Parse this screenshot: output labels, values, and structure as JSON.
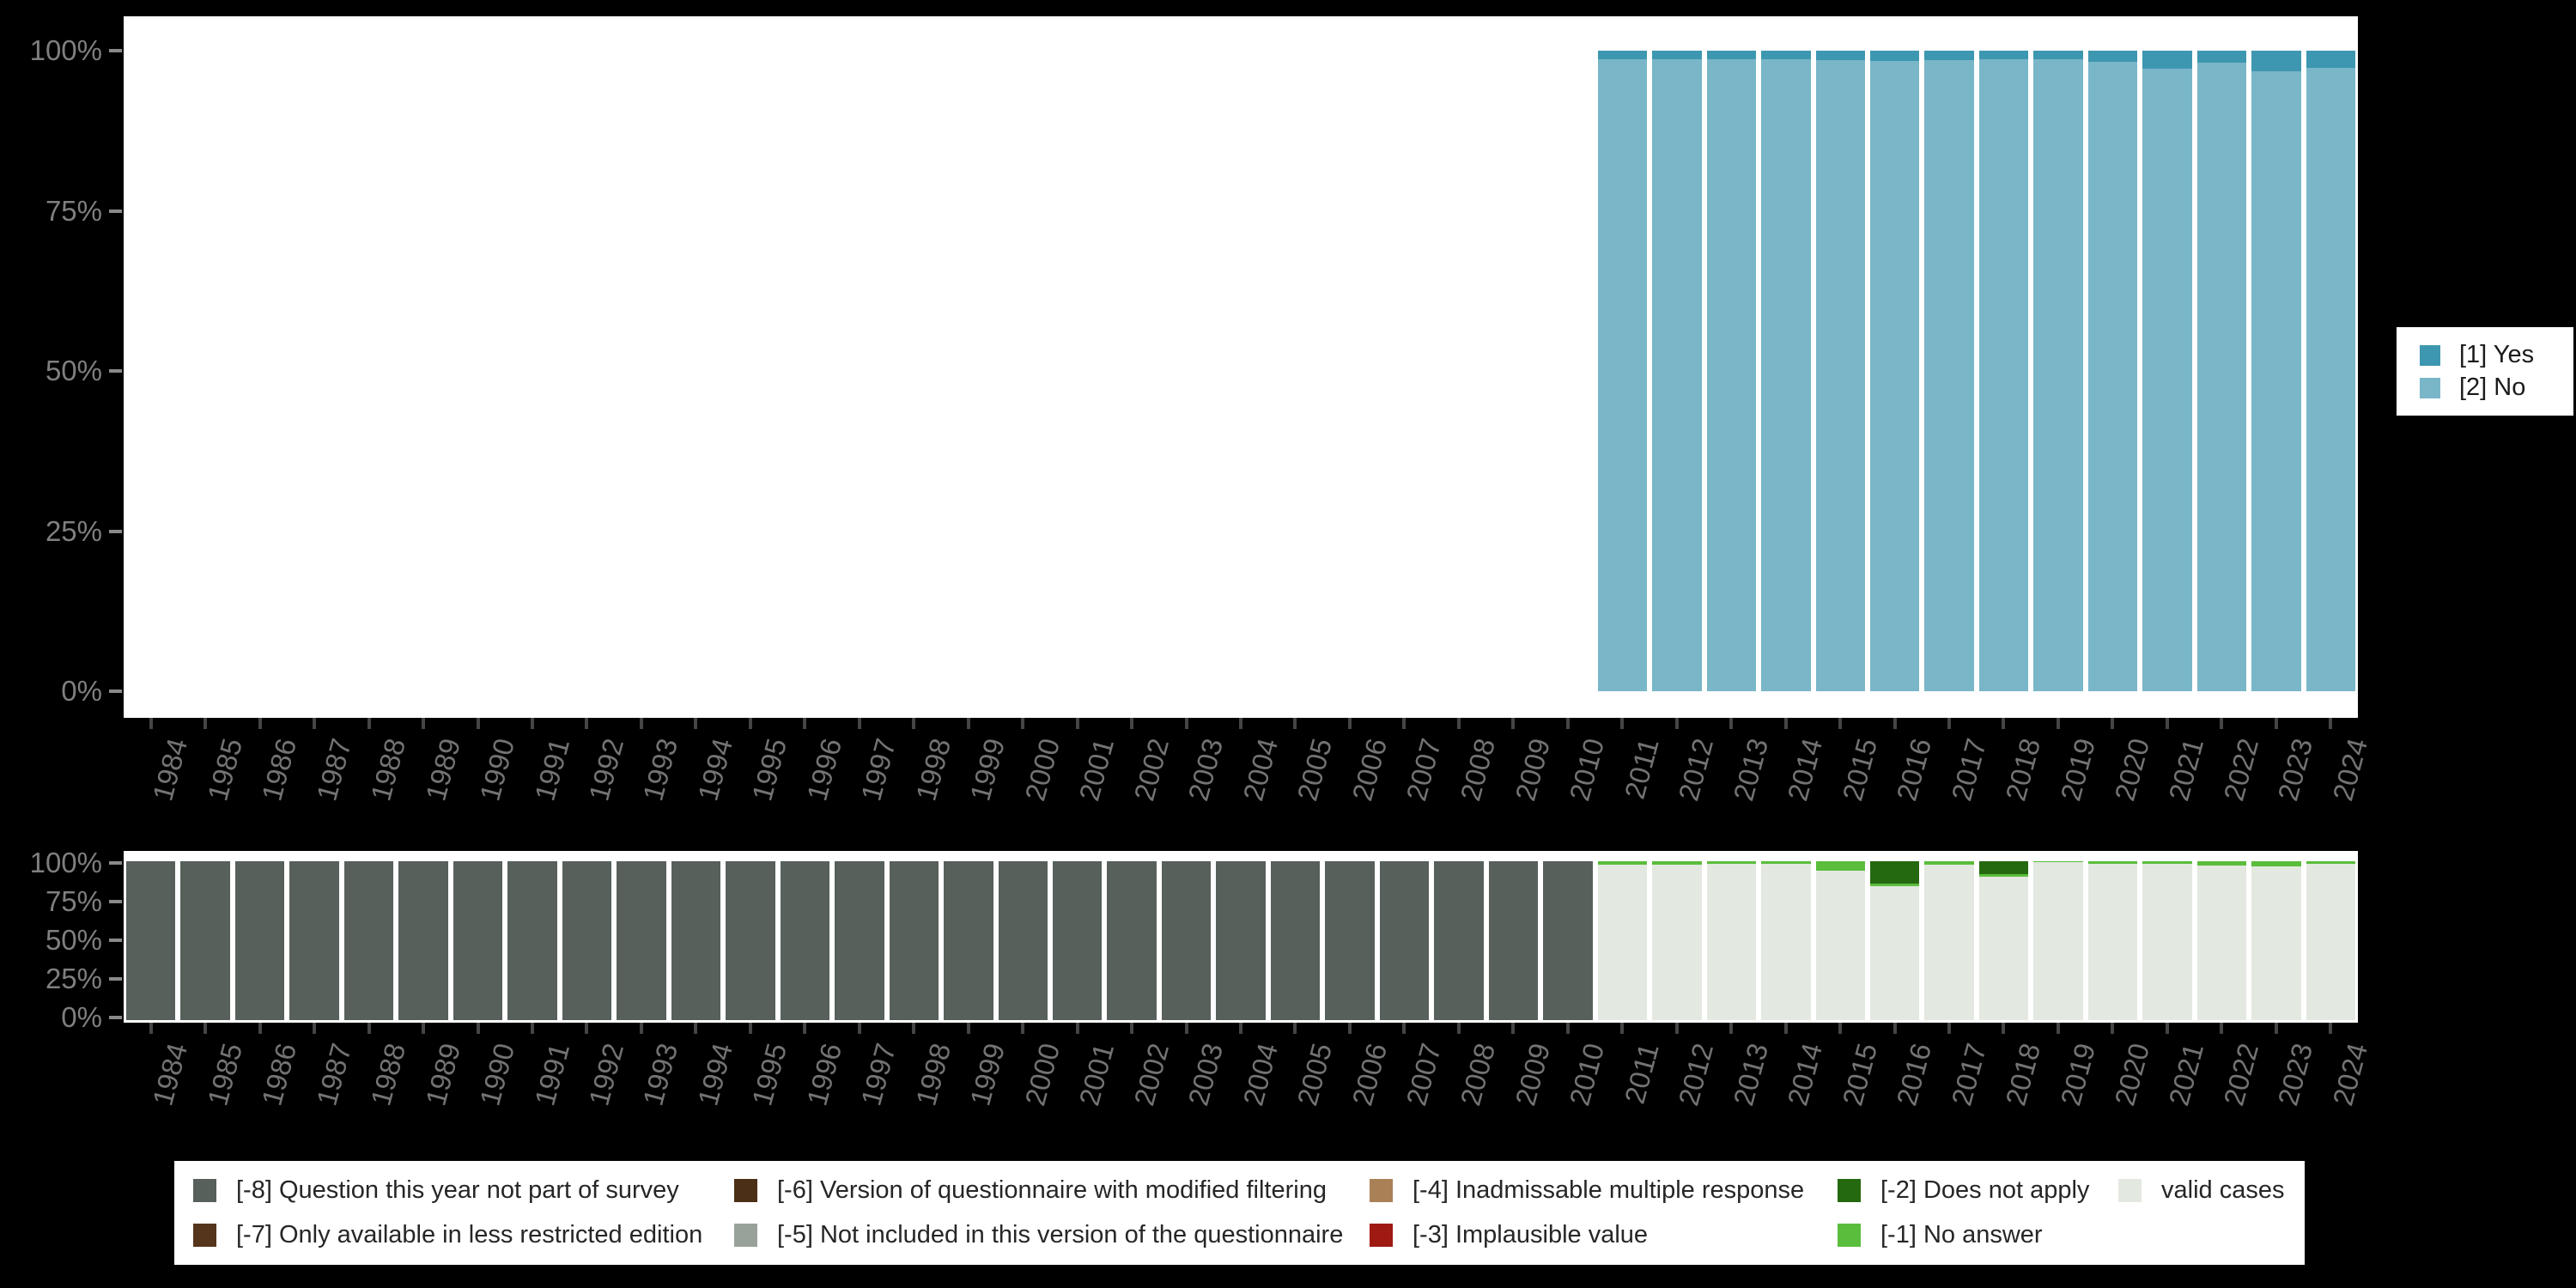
{
  "page": {
    "background": "#000000",
    "plot_background": "#ffffff"
  },
  "chart_data": [
    {
      "type": "bar",
      "stacked": true,
      "title": "",
      "xlabel": "",
      "ylabel": "",
      "ylim": [
        0,
        100
      ],
      "grid": false,
      "legend_position": "right",
      "y_ticks": [
        "100%",
        "75%",
        "50%",
        "25%",
        "0%"
      ],
      "categories": [
        1984,
        1985,
        1986,
        1987,
        1988,
        1989,
        1990,
        1991,
        1992,
        1993,
        1994,
        1995,
        1996,
        1997,
        1998,
        1999,
        2000,
        2001,
        2002,
        2003,
        2004,
        2005,
        2006,
        2007,
        2008,
        2009,
        2010,
        2011,
        2012,
        2013,
        2014,
        2015,
        2016,
        2017,
        2018,
        2019,
        2020,
        2021,
        2022,
        2023,
        2024
      ],
      "series": [
        {
          "name": "[1] Yes",
          "color": "#3E97B0",
          "values": [
            null,
            null,
            null,
            null,
            null,
            null,
            null,
            null,
            null,
            null,
            null,
            null,
            null,
            null,
            null,
            null,
            null,
            null,
            null,
            null,
            null,
            null,
            null,
            null,
            null,
            null,
            null,
            1.3,
            1.3,
            1.4,
            1.3,
            1.5,
            1.6,
            1.5,
            1.3,
            1.3,
            1.7,
            2.8,
            1.9,
            3.2,
            2.7
          ]
        },
        {
          "name": "[2] No",
          "color": "#79B6C8",
          "values": [
            null,
            null,
            null,
            null,
            null,
            null,
            null,
            null,
            null,
            null,
            null,
            null,
            null,
            null,
            null,
            null,
            null,
            null,
            null,
            null,
            null,
            null,
            null,
            null,
            null,
            null,
            null,
            98.7,
            98.7,
            98.6,
            98.7,
            98.5,
            98.4,
            98.5,
            98.7,
            98.7,
            98.3,
            97.2,
            98.1,
            96.8,
            97.3
          ]
        }
      ]
    },
    {
      "type": "bar",
      "stacked": true,
      "title": "",
      "xlabel": "",
      "ylabel": "",
      "ylim": [
        0,
        100
      ],
      "grid": false,
      "legend_position": "bottom",
      "y_ticks": [
        "100%",
        "75%",
        "50%",
        "25%",
        "0%"
      ],
      "categories": [
        1984,
        1985,
        1986,
        1987,
        1988,
        1989,
        1990,
        1991,
        1992,
        1993,
        1994,
        1995,
        1996,
        1997,
        1998,
        1999,
        2000,
        2001,
        2002,
        2003,
        2004,
        2005,
        2006,
        2007,
        2008,
        2009,
        2010,
        2011,
        2012,
        2013,
        2014,
        2015,
        2016,
        2017,
        2018,
        2019,
        2020,
        2021,
        2022,
        2023,
        2024
      ],
      "series": [
        {
          "name": "[-8] Question this year not part of survey",
          "color": "#57605A",
          "values": [
            100,
            100,
            100,
            100,
            100,
            100,
            100,
            100,
            100,
            100,
            100,
            100,
            100,
            100,
            100,
            100,
            100,
            100,
            100,
            100,
            100,
            100,
            100,
            100,
            100,
            100,
            100,
            0,
            0,
            0,
            0,
            0,
            0,
            0,
            0,
            0,
            0,
            0,
            0,
            0,
            0
          ]
        },
        {
          "name": "[-2] Does not apply",
          "color": "#24690F",
          "values": [
            0,
            0,
            0,
            0,
            0,
            0,
            0,
            0,
            0,
            0,
            0,
            0,
            0,
            0,
            0,
            0,
            0,
            0,
            0,
            0,
            0,
            0,
            0,
            0,
            0,
            0,
            0,
            0,
            0,
            0,
            0,
            0,
            13.8,
            0,
            8,
            0,
            0,
            0,
            0,
            0,
            0
          ]
        },
        {
          "name": "[-1] No answer",
          "color": "#5ABD3C",
          "values": [
            0,
            0,
            0,
            0,
            0,
            0,
            0,
            0,
            0,
            0,
            0,
            0,
            0,
            0,
            0,
            0,
            0,
            0,
            0,
            0,
            0,
            0,
            0,
            0,
            0,
            0,
            0,
            2,
            2,
            1.7,
            1.7,
            6,
            1.7,
            2,
            1.8,
            0.8,
            1.7,
            1.7,
            2.5,
            3,
            1.7
          ]
        },
        {
          "name": "valid cases",
          "color": "#E3E8E0",
          "values": [
            0,
            0,
            0,
            0,
            0,
            0,
            0,
            0,
            0,
            0,
            0,
            0,
            0,
            0,
            0,
            0,
            0,
            0,
            0,
            0,
            0,
            0,
            0,
            0,
            0,
            0,
            0,
            98,
            98,
            98.3,
            98.3,
            94,
            84.5,
            98,
            90.2,
            99.2,
            98.3,
            98.3,
            97.5,
            97,
            98.3
          ]
        }
      ]
    }
  ],
  "legend_right": {
    "items": [
      {
        "label": "[1] Yes",
        "color": "#3E97B0"
      },
      {
        "label": "[2] No",
        "color": "#79B6C8"
      }
    ]
  },
  "legend_bottom": {
    "columns": [
      [
        {
          "label": "[-8] Question this year not part of survey",
          "color": "#57605A"
        },
        {
          "label": "[-7] Only available in less restricted edition",
          "color": "#55351C"
        }
      ],
      [
        {
          "label": "[-6] Version of questionnaire with modified filtering",
          "color": "#4C2F17"
        },
        {
          "label": "[-5] Not included in this version of the questionnaire",
          "color": "#99A29A"
        }
      ],
      [
        {
          "label": "[-4] Inadmissable multiple response",
          "color": "#AA8157"
        },
        {
          "label": "[-3] Implausible value",
          "color": "#9E1A12"
        }
      ],
      [
        {
          "label": "[-2] Does not apply",
          "color": "#24690F"
        },
        {
          "label": "[-1] No answer",
          "color": "#5ABD3C"
        }
      ],
      [
        {
          "label": "valid cases",
          "color": "#E3E8E0"
        }
      ]
    ]
  }
}
